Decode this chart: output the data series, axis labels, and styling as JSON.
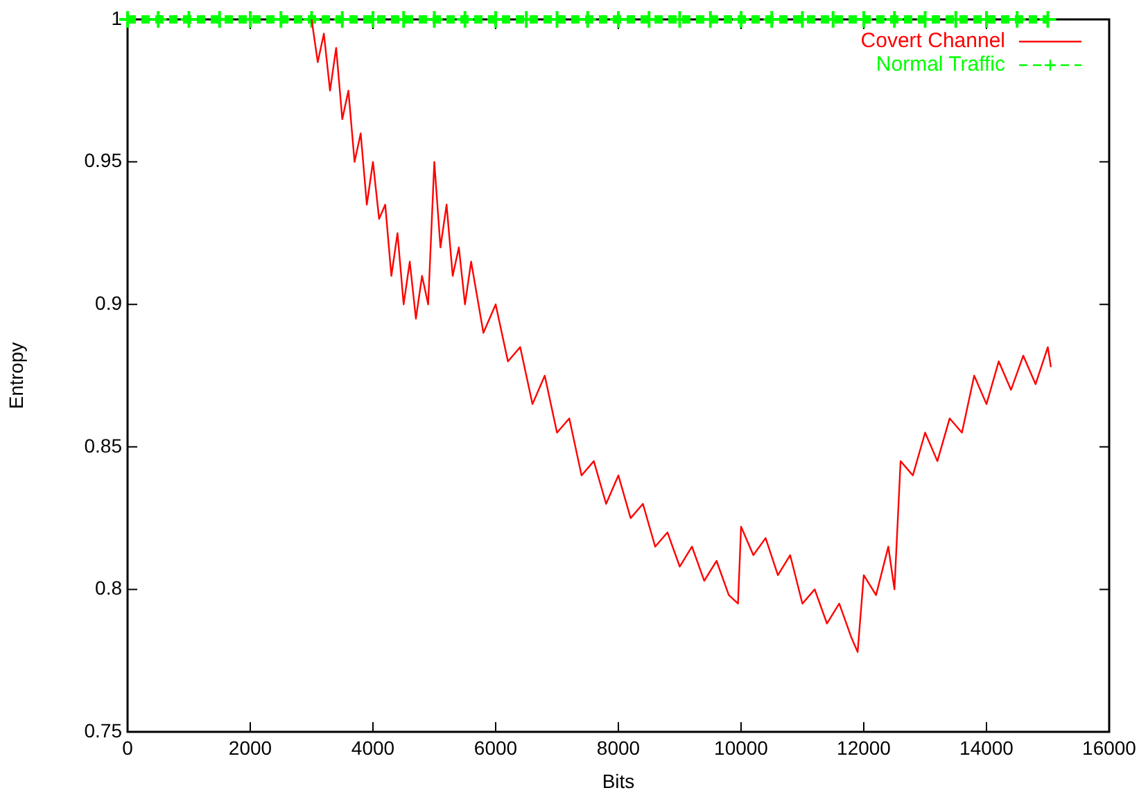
{
  "chart_data": {
    "type": "line",
    "xlabel": "Bits",
    "ylabel": "Entropy",
    "xlim": [
      0,
      16000
    ],
    "ylim": [
      0.75,
      1
    ],
    "xticks": [
      0,
      2000,
      4000,
      6000,
      8000,
      10000,
      12000,
      14000,
      16000
    ],
    "yticks": [
      0.75,
      0.8,
      0.85,
      0.9,
      0.95,
      1
    ],
    "grid": false,
    "legend": "top right",
    "series": [
      {
        "name": "Covert Channel",
        "color": "#ff0000",
        "line_style": "solid",
        "marker": "none",
        "x": [
          3000,
          3100,
          3200,
          3300,
          3400,
          3500,
          3600,
          3700,
          3800,
          3900,
          4000,
          4100,
          4200,
          4300,
          4400,
          4500,
          4600,
          4700,
          4800,
          4900,
          5000,
          5100,
          5200,
          5300,
          5400,
          5500,
          5600,
          5800,
          6000,
          6200,
          6400,
          6600,
          6800,
          7000,
          7200,
          7400,
          7600,
          7800,
          8000,
          8200,
          8400,
          8600,
          8800,
          9000,
          9200,
          9400,
          9600,
          9800,
          9950,
          10000,
          10200,
          10400,
          10600,
          10800,
          11000,
          11200,
          11400,
          11600,
          11800,
          11900,
          12000,
          12200,
          12400,
          12500,
          12600,
          12800,
          13000,
          13200,
          13400,
          13600,
          13800,
          14000,
          14200,
          14400,
          14600,
          14800,
          15000,
          15050
        ],
        "values": [
          1.0,
          0.985,
          0.995,
          0.975,
          0.99,
          0.965,
          0.975,
          0.95,
          0.96,
          0.935,
          0.95,
          0.93,
          0.935,
          0.91,
          0.925,
          0.9,
          0.915,
          0.895,
          0.91,
          0.9,
          0.95,
          0.92,
          0.935,
          0.91,
          0.92,
          0.9,
          0.915,
          0.89,
          0.9,
          0.88,
          0.885,
          0.865,
          0.875,
          0.855,
          0.86,
          0.84,
          0.845,
          0.83,
          0.84,
          0.825,
          0.83,
          0.815,
          0.82,
          0.808,
          0.815,
          0.803,
          0.81,
          0.798,
          0.795,
          0.822,
          0.812,
          0.818,
          0.805,
          0.812,
          0.795,
          0.8,
          0.788,
          0.795,
          0.783,
          0.778,
          0.805,
          0.798,
          0.815,
          0.8,
          0.845,
          0.84,
          0.855,
          0.845,
          0.86,
          0.855,
          0.875,
          0.865,
          0.88,
          0.87,
          0.882,
          0.872,
          0.885,
          0.878
        ]
      },
      {
        "name": "Normal Traffic",
        "color": "#00ff00",
        "line_style": "dashed",
        "marker": "cross",
        "x": [
          0,
          500,
          1000,
          1500,
          2000,
          2500,
          3000,
          3500,
          4000,
          4500,
          5000,
          5500,
          6000,
          6500,
          7000,
          7500,
          8000,
          8500,
          9000,
          9500,
          10000,
          10500,
          11000,
          11500,
          12000,
          12500,
          13000,
          13500,
          14000,
          14500,
          15000
        ],
        "values": [
          1,
          1,
          1,
          1,
          1,
          1,
          1,
          1,
          1,
          1,
          1,
          1,
          1,
          1,
          1,
          1,
          1,
          1,
          1,
          1,
          1,
          1,
          1,
          1,
          1,
          1,
          1,
          1,
          1,
          1,
          1
        ]
      }
    ]
  }
}
